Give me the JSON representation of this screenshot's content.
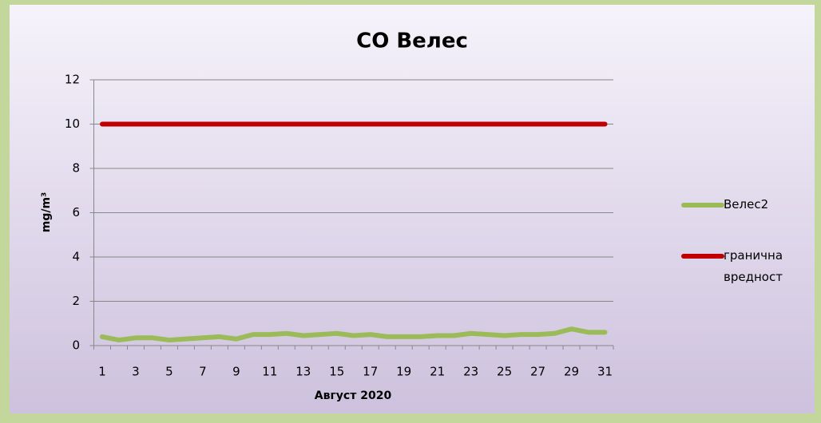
{
  "chart_data": {
    "type": "line",
    "title": "CO Велес",
    "x_label": "Август 2020",
    "y_label": "mg/m³",
    "categories": [
      1,
      null,
      3,
      null,
      5,
      null,
      7,
      null,
      9,
      null,
      11,
      null,
      13,
      null,
      15,
      null,
      17,
      null,
      19,
      null,
      21,
      null,
      23,
      null,
      25,
      null,
      27,
      null,
      29,
      null,
      31
    ],
    "series": [
      {
        "name": "Велес2",
        "color": "#9bbb59",
        "values": [
          0.4,
          0.25,
          0.35,
          0.35,
          0.25,
          0.3,
          0.35,
          0.4,
          0.3,
          0.5,
          0.5,
          0.55,
          0.45,
          0.5,
          0.55,
          0.45,
          0.5,
          0.4,
          0.4,
          0.4,
          0.45,
          0.45,
          0.55,
          0.5,
          0.45,
          0.5,
          0.5,
          0.55,
          0.75,
          0.6,
          0.6
        ]
      },
      {
        "name": "гранична вредност",
        "color": "#c00000",
        "values": [
          10,
          10,
          10,
          10,
          10,
          10,
          10,
          10,
          10,
          10,
          10,
          10,
          10,
          10,
          10,
          10,
          10,
          10,
          10,
          10,
          10,
          10,
          10,
          10,
          10,
          10,
          10,
          10,
          10,
          10,
          10
        ]
      }
    ],
    "ylim": [
      0,
      12
    ],
    "yticks": [
      0,
      2,
      4,
      6,
      8,
      10,
      12
    ],
    "grid": true,
    "legend": "right"
  }
}
